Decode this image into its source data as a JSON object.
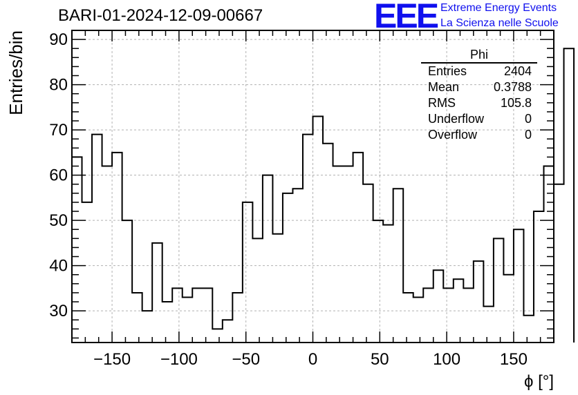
{
  "header": {
    "title": "BARI-01-2024-12-09-00667",
    "logo_text": "EEE",
    "logo_line1": "Extreme Energy Events",
    "logo_line2": "La Scienza nelle Scuole"
  },
  "stats_box": {
    "title": "Phi",
    "rows": [
      {
        "label": "Entries",
        "value": "2404"
      },
      {
        "label": "Mean",
        "value": "0.3788"
      },
      {
        "label": "RMS",
        "value": "105.8"
      },
      {
        "label": "Underflow",
        "value": "0"
      },
      {
        "label": "Overflow",
        "value": "0"
      }
    ]
  },
  "colors": {
    "line": "#000000",
    "grid": "#b0b0b0",
    "logo": "#1010ee"
  },
  "chart_data": {
    "type": "histogram",
    "xlabel": "ϕ [°]",
    "ylabel": "Entries/bin",
    "xlim": [
      -180,
      180
    ],
    "ylim": [
      23,
      92
    ],
    "grid": true,
    "bin_width": 7.5,
    "bin_edges_start": -180,
    "values": [
      64,
      54,
      69,
      62,
      65,
      50,
      34,
      30,
      45,
      32,
      35,
      33,
      35,
      35,
      26,
      28,
      34,
      54,
      46,
      60,
      47,
      56,
      57,
      69,
      73,
      67,
      62,
      62,
      65,
      58,
      50,
      49,
      57,
      34,
      33,
      35,
      39,
      35,
      37,
      35,
      41,
      31,
      46,
      38,
      48,
      29,
      52,
      62,
      58,
      88
    ],
    "x_ticks": [
      -150,
      -100,
      -50,
      0,
      50,
      100,
      150
    ],
    "x_tick_labels": [
      "−150",
      "−100",
      "−50",
      "0",
      "50",
      "100",
      "150"
    ],
    "y_ticks": [
      30,
      40,
      50,
      60,
      70,
      80,
      90
    ],
    "y_tick_labels": [
      "30",
      "40",
      "50",
      "60",
      "70",
      "80",
      "90"
    ]
  }
}
